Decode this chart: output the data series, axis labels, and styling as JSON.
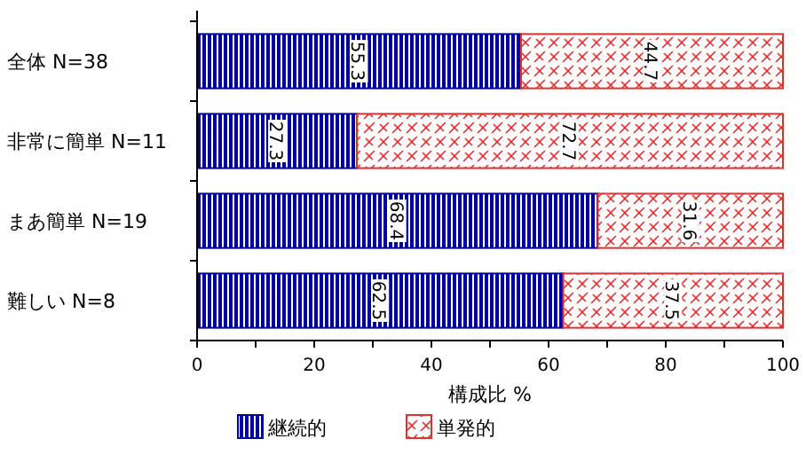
{
  "chart_data": {
    "type": "bar",
    "orientation": "horizontal",
    "stacked": true,
    "xlabel": "構成比 %",
    "categories": [
      "全体 N=38",
      "非常に簡単 N=11",
      "まあ簡単 N=19",
      "難しい N=8"
    ],
    "series": [
      {
        "name": "継続的",
        "color": "#0000a0",
        "values": [
          55.3,
          27.3,
          68.4,
          62.5
        ]
      },
      {
        "name": "単発的",
        "color": "#e03030",
        "values": [
          44.7,
          72.7,
          31.6,
          37.5
        ]
      }
    ],
    "xlim": [
      0,
      100
    ],
    "xticks": [
      0,
      {
        "value": 10,
        "label": null
      },
      20,
      {
        "value": 30,
        "label": null
      },
      40,
      {
        "value": 50,
        "label": null
      },
      60,
      {
        "value": 70,
        "label": null
      },
      80,
      {
        "value": 90,
        "label": null
      },
      100
    ],
    "data_labels": true,
    "grid": false,
    "legend": "bottom"
  }
}
